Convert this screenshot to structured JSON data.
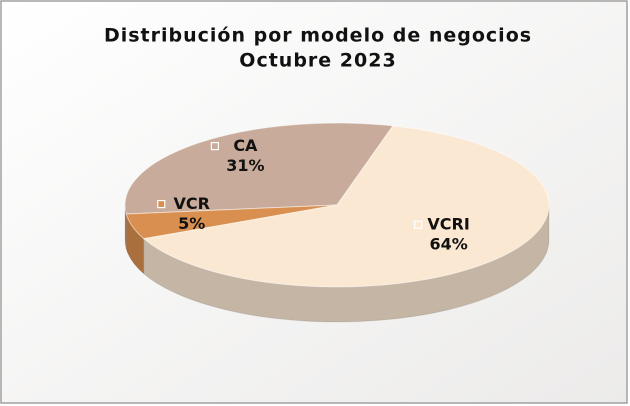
{
  "chart_data": {
    "type": "pie",
    "title": "Distribución por modelo de negocios",
    "subtitle": "Octubre 2023",
    "categories": [
      "CA",
      "VCR",
      "VCRI"
    ],
    "values": [
      31,
      5,
      64
    ],
    "value_labels": [
      "31%",
      "5%",
      "64%"
    ],
    "colors": [
      "#c8ab9a",
      "#d98f4f",
      "#fbe8d2"
    ]
  }
}
